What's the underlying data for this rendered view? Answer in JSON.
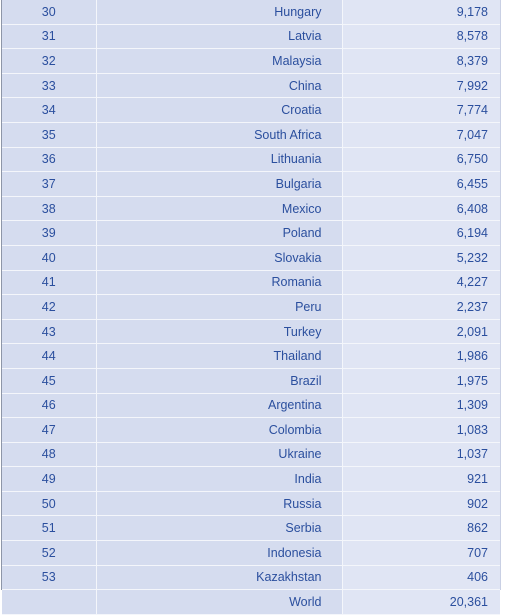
{
  "rows": [
    {
      "rank": "30",
      "country": "Hungary",
      "value": "9,178"
    },
    {
      "rank": "31",
      "country": "Latvia",
      "value": "8,578"
    },
    {
      "rank": "32",
      "country": "Malaysia",
      "value": "8,379"
    },
    {
      "rank": "33",
      "country": "China",
      "value": "7,992"
    },
    {
      "rank": "34",
      "country": "Croatia",
      "value": "7,774"
    },
    {
      "rank": "35",
      "country": "South Africa",
      "value": "7,047"
    },
    {
      "rank": "36",
      "country": "Lithuania",
      "value": "6,750"
    },
    {
      "rank": "37",
      "country": "Bulgaria",
      "value": "6,455"
    },
    {
      "rank": "38",
      "country": "Mexico",
      "value": "6,408"
    },
    {
      "rank": "39",
      "country": "Poland",
      "value": "6,194"
    },
    {
      "rank": "40",
      "country": "Slovakia",
      "value": "5,232"
    },
    {
      "rank": "41",
      "country": "Romania",
      "value": "4,227"
    },
    {
      "rank": "42",
      "country": "Peru",
      "value": "2,237"
    },
    {
      "rank": "43",
      "country": "Turkey",
      "value": "2,091"
    },
    {
      "rank": "44",
      "country": "Thailand",
      "value": "1,986"
    },
    {
      "rank": "45",
      "country": "Brazil",
      "value": "1,975"
    },
    {
      "rank": "46",
      "country": "Argentina",
      "value": "1,309"
    },
    {
      "rank": "47",
      "country": "Colombia",
      "value": "1,083"
    },
    {
      "rank": "48",
      "country": "Ukraine",
      "value": "1,037"
    },
    {
      "rank": "49",
      "country": "India",
      "value": "921"
    },
    {
      "rank": "50",
      "country": "Russia",
      "value": "902"
    },
    {
      "rank": "51",
      "country": "Serbia",
      "value": "862"
    },
    {
      "rank": "52",
      "country": "Indonesia",
      "value": "707"
    },
    {
      "rank": "53",
      "country": "Kazakhstan",
      "value": "406"
    }
  ],
  "total": {
    "rank": "",
    "country": "World",
    "value": "20,361"
  }
}
